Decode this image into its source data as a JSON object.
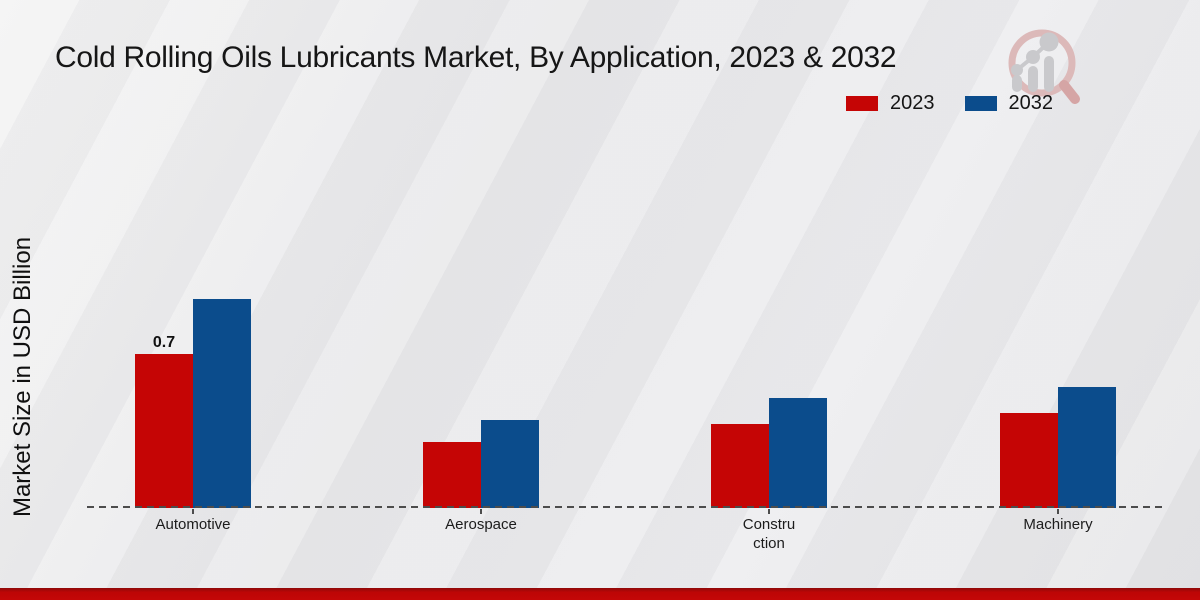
{
  "page": {
    "title": "Cold Rolling Oils Lubricants Market, By Application, 2023 & 2032",
    "ylabel": "Market Size in USD Billion"
  },
  "legend": {
    "items": [
      {
        "label": "2023",
        "color": "#c50505"
      },
      {
        "label": "2032",
        "color": "#0b4c8c"
      }
    ]
  },
  "chart_data": {
    "type": "bar",
    "title": "Cold Rolling Oils Lubricants Market, By Application, 2023 & 2032",
    "xlabel": "",
    "ylabel": "Market Size in USD Billion",
    "categories": [
      "Automotive",
      "Aerospace",
      "Construction",
      "Machinery"
    ],
    "category_label_lines": [
      [
        "Automotive"
      ],
      [
        "Aerospace"
      ],
      [
        "Constru",
        "ction"
      ],
      [
        "Machinery"
      ]
    ],
    "series": [
      {
        "name": "2023",
        "color": "#c50505",
        "values": [
          0.7,
          0.3,
          0.38,
          0.43
        ],
        "value_labels": [
          "0.7",
          null,
          null,
          null
        ]
      },
      {
        "name": "2032",
        "color": "#0b4c8c",
        "values": [
          0.95,
          0.4,
          0.5,
          0.55
        ],
        "value_labels": [
          null,
          null,
          null,
          null
        ]
      }
    ],
    "ylim": [
      0,
      1.0
    ],
    "grid": false,
    "legend_position": "top-right",
    "x_axis_style": "dashed",
    "watermark_icon": "magnifier-bar-chart-logo",
    "footer_accent_color": "#c40707"
  }
}
